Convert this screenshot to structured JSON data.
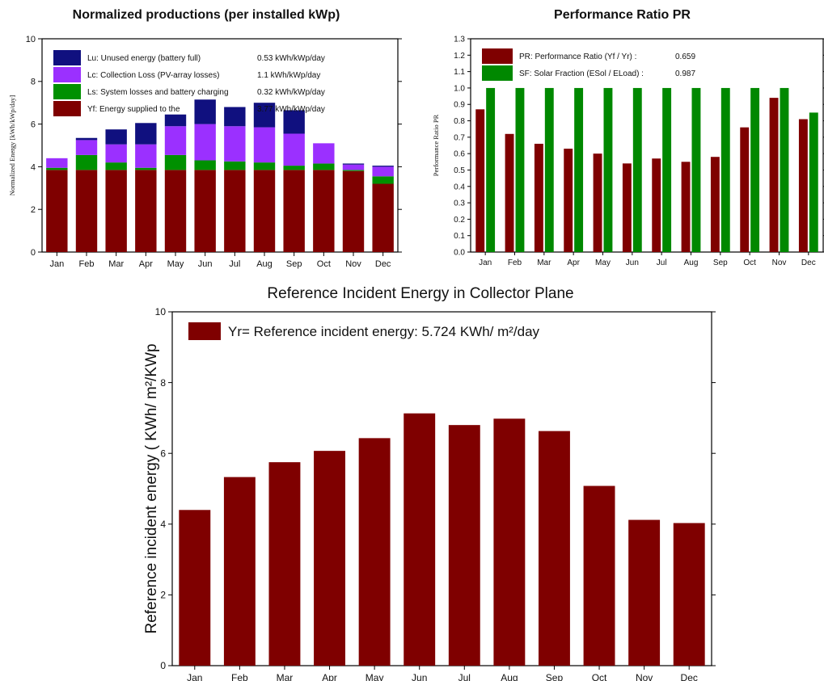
{
  "chart_data": [
    {
      "id": "norm",
      "type": "bar",
      "stacked": true,
      "title": "Normalized productions (per installed kWp)",
      "xlabel": "",
      "ylabel": "Normalized Energy [kWh/kWp/day]",
      "ylim": [
        0,
        10
      ],
      "yticks": [
        0,
        2,
        4,
        6,
        8,
        10
      ],
      "grid": false,
      "legend_position": "top-left",
      "categories": [
        "Jan",
        "Feb",
        "Mar",
        "Apr",
        "May",
        "Jun",
        "Jul",
        "Aug",
        "Sep",
        "Oct",
        "Nov",
        "Dec"
      ],
      "series": [
        {
          "name": "Yf: Energy supplied to the user",
          "legend_label": "Yf: Energy supplied to the",
          "legend_value": "3.77 kWh/kWp/day",
          "color": "#7f0000",
          "values": [
            3.85,
            3.85,
            3.85,
            3.85,
            3.85,
            3.85,
            3.85,
            3.85,
            3.85,
            3.85,
            3.8,
            3.2
          ]
        },
        {
          "name": "Ls: System losses and battery charging",
          "legend_label": "Ls: System losses and battery charging",
          "legend_value": "0.32 kWh/kWp/day",
          "color": "#009000",
          "values": [
            0.1,
            0.7,
            0.35,
            0.1,
            0.7,
            0.45,
            0.4,
            0.35,
            0.2,
            0.3,
            0.05,
            0.35
          ]
        },
        {
          "name": "Lc: Collection Loss (PV-array losses)",
          "legend_label": "Lc: Collection Loss (PV-array losses)",
          "legend_value": "1.1 kWh/kWp/day",
          "color": "#9b30ff",
          "values": [
            0.45,
            0.7,
            0.85,
            1.1,
            1.35,
            1.7,
            1.65,
            1.65,
            1.5,
            0.95,
            0.25,
            0.45
          ]
        },
        {
          "name": "Lu: Unused energy (battery full)",
          "legend_label": "Lu: Unused energy (battery full)",
          "legend_value": "0.53 kWh/kWp/day",
          "color": "#10107f",
          "values": [
            0.0,
            0.1,
            0.7,
            1.0,
            0.55,
            1.15,
            0.9,
            1.15,
            1.1,
            0.0,
            0.05,
            0.05
          ]
        }
      ]
    },
    {
      "id": "pr",
      "type": "bar",
      "title": "Performance Ratio PR",
      "xlabel": "",
      "ylabel": "Performance Ratio PR",
      "ylim": [
        0,
        1.3
      ],
      "yticks": [
        0.0,
        0.1,
        0.2,
        0.3,
        0.4,
        0.5,
        0.6,
        0.7,
        0.8,
        0.9,
        1.0,
        1.1,
        1.2,
        1.3
      ],
      "grid": false,
      "legend_position": "top-left",
      "categories": [
        "Jan",
        "Feb",
        "Mar",
        "Apr",
        "May",
        "Jun",
        "Jul",
        "Aug",
        "Sep",
        "Oct",
        "Nov",
        "Dec"
      ],
      "series": [
        {
          "name": "PR: Performance Ratio (Yf / Yr) :",
          "legend_value": "0.659",
          "color": "#7f0000",
          "values": [
            0.87,
            0.72,
            0.66,
            0.63,
            0.6,
            0.54,
            0.57,
            0.55,
            0.58,
            0.76,
            0.94,
            0.81
          ]
        },
        {
          "name": "SF: Solar Fraction (ESol / ELoad) :",
          "legend_value": "0.987",
          "color": "#008800",
          "values": [
            1.0,
            1.0,
            1.0,
            1.0,
            1.0,
            1.0,
            1.0,
            1.0,
            1.0,
            1.0,
            1.0,
            0.85
          ]
        }
      ]
    },
    {
      "id": "yr",
      "type": "bar",
      "title": "Reference Incident Energy in Collector Plane",
      "xlabel": "",
      "ylabel": "Reference incident energy ( KWh/ m²/KWp",
      "ylim": [
        0,
        10
      ],
      "yticks": [
        0,
        2,
        4,
        6,
        8,
        10
      ],
      "grid": false,
      "legend_position": "top-left",
      "categories": [
        "Jan",
        "Feb",
        "Mar",
        "Apr",
        "May",
        "Jun",
        "Jul",
        "Aug",
        "Sep",
        "Oct",
        "Nov",
        "Dec"
      ],
      "series": [
        {
          "name": "Yr= Reference incident energy: 5.724 KWh/ m²/day",
          "color": "#7f0000",
          "values": [
            4.4,
            5.33,
            5.75,
            6.07,
            6.43,
            7.13,
            6.8,
            6.98,
            6.63,
            5.08,
            4.12,
            4.03
          ]
        }
      ]
    }
  ]
}
